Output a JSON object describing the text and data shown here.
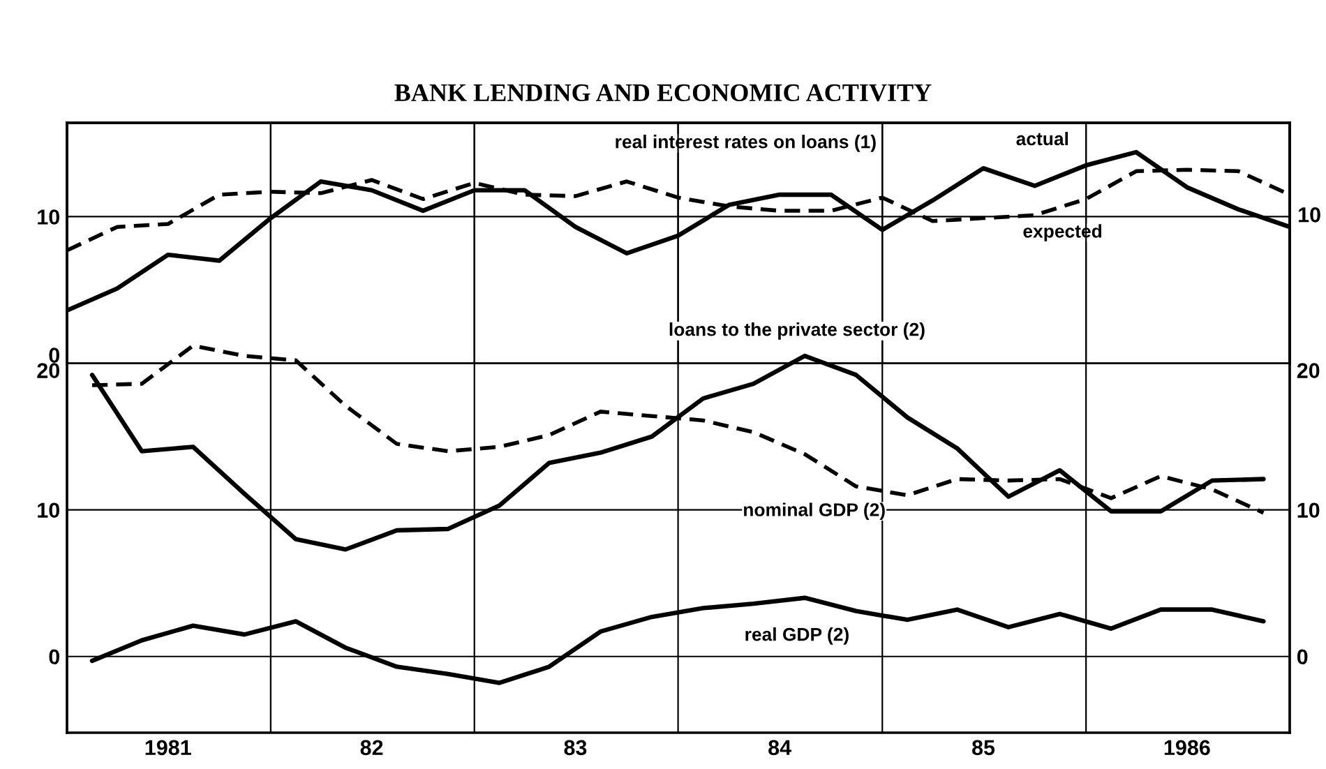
{
  "chart_data": [
    {
      "type": "line",
      "title": "BANK LENDING AND ECONOMIC ACTIVITY",
      "subtitle": "real interest rates on loans (1)",
      "tick_labels": "y",
      "grid": true,
      "xlim": [
        "1981-01-01",
        "1987-01-01"
      ],
      "ylim": [
        0,
        16.4
      ],
      "yticks": [
        0,
        10
      ],
      "xticks": [
        {
          "value": "1982-01-01",
          "label": null
        },
        {
          "value": "1983-01-01",
          "label": null
        },
        {
          "value": "1984-01-01",
          "label": null
        },
        {
          "value": "1985-01-01",
          "label": null
        },
        {
          "value": "1986-01-01",
          "label": null
        }
      ],
      "annotations": [
        "10"
      ],
      "x": [
        "1981-01-01",
        "1981-04-01",
        "1981-07-01",
        "1981-10-01",
        "1982-01-01",
        "1982-04-01",
        "1982-07-01",
        "1982-10-01",
        "1983-01-01",
        "1983-04-01",
        "1983-07-01",
        "1983-10-01",
        "1984-01-01",
        "1984-04-01",
        "1984-07-01",
        "1984-10-01",
        "1985-01-01",
        "1985-04-01",
        "1985-07-01",
        "1985-10-01",
        "1986-01-01",
        "1986-04-01",
        "1986-07-01",
        "1986-10-01",
        "1987-01-01"
      ],
      "series": [
        {
          "name": "actual",
          "color": "#000000",
          "line_style": "solid",
          "values": [
            3.6,
            5.1,
            7.4,
            7.0,
            9.9,
            12.4,
            11.8,
            10.4,
            11.8,
            11.8,
            9.3,
            7.5,
            8.7,
            10.8,
            11.5,
            11.5,
            9.1,
            11.1,
            13.3,
            12.1,
            13.5,
            14.4,
            12.0,
            10.5,
            9.3
          ]
        },
        {
          "name": "expected",
          "color": "#000000",
          "line_style": "dashed",
          "values": [
            7.7,
            9.3,
            9.5,
            11.5,
            11.7,
            11.6,
            12.5,
            11.2,
            12.3,
            11.5,
            11.4,
            12.4,
            11.3,
            10.7,
            10.4,
            10.4,
            11.3,
            9.7,
            9.9,
            10.1,
            11.2,
            13.1,
            13.2,
            13.1,
            11.5
          ]
        }
      ]
    },
    {
      "type": "line",
      "grid": true,
      "xlim": [
        "1981-01-01",
        "1987-01-01"
      ],
      "ylim": [
        -5.2,
        36.4
      ],
      "yticks": [
        0,
        10,
        20
      ],
      "y2lim": [
        -5.2,
        36.4
      ],
      "y2ticks": [
        0,
        10,
        20
      ],
      "xticks": [
        {
          "value": "1981-07-01",
          "label": "1981"
        },
        {
          "value": "1982-01-01",
          "label": null
        },
        {
          "value": "1982-07-01",
          "label": "82"
        },
        {
          "value": "1983-01-01",
          "label": null
        },
        {
          "value": "1983-07-01",
          "label": "83"
        },
        {
          "value": "1984-01-01",
          "label": null
        },
        {
          "value": "1984-07-01",
          "label": "84"
        },
        {
          "value": "1985-01-01",
          "label": null
        },
        {
          "value": "1985-07-01",
          "label": "85"
        },
        {
          "value": "1986-01-01",
          "label": null
        },
        {
          "value": "1986-07-01",
          "label": "1986"
        }
      ],
      "x": [
        "1981-02-15",
        "1981-05-15",
        "1981-08-15",
        "1981-11-15",
        "1982-02-15",
        "1982-05-15",
        "1982-08-15",
        "1982-11-15",
        "1983-02-15",
        "1983-05-15",
        "1983-08-15",
        "1983-11-15",
        "1984-02-15",
        "1984-05-15",
        "1984-08-15",
        "1984-11-15",
        "1985-02-15",
        "1985-05-15",
        "1985-08-15",
        "1985-11-15",
        "1986-02-15",
        "1986-05-15",
        "1986-08-15",
        "1986-11-15"
      ],
      "series": [
        {
          "name": "loans to the private sector (2)",
          "color": "#000000",
          "line_style": "solid",
          "values": [
            19.2,
            14.0,
            14.3,
            11.1,
            8.0,
            7.3,
            8.6,
            8.7,
            10.3,
            13.2,
            13.9,
            15.0,
            17.6,
            18.6,
            20.5,
            19.2,
            16.3,
            14.2,
            10.9,
            12.7,
            9.9,
            9.9,
            12.0,
            12.1
          ]
        },
        {
          "name": "nominal GDP (2)",
          "color": "#000000",
          "line_style": "dashed",
          "values": [
            18.5,
            18.6,
            21.2,
            20.5,
            20.2,
            17.1,
            14.5,
            14.0,
            14.3,
            15.1,
            16.7,
            16.4,
            16.1,
            15.3,
            13.8,
            11.6,
            11.0,
            12.1,
            12.0,
            12.1,
            10.8,
            12.3,
            11.4,
            9.8
          ]
        },
        {
          "name": "real GDP (2)",
          "color": "#000000",
          "line_style": "solid",
          "values": [
            -0.3,
            1.1,
            2.1,
            1.5,
            2.4,
            0.6,
            -0.7,
            -1.2,
            -1.8,
            -0.7,
            1.7,
            2.7,
            3.3,
            3.6,
            4.0,
            3.1,
            2.5,
            3.2,
            2.0,
            2.9,
            1.9,
            3.2,
            3.2,
            2.4
          ]
        }
      ]
    }
  ]
}
